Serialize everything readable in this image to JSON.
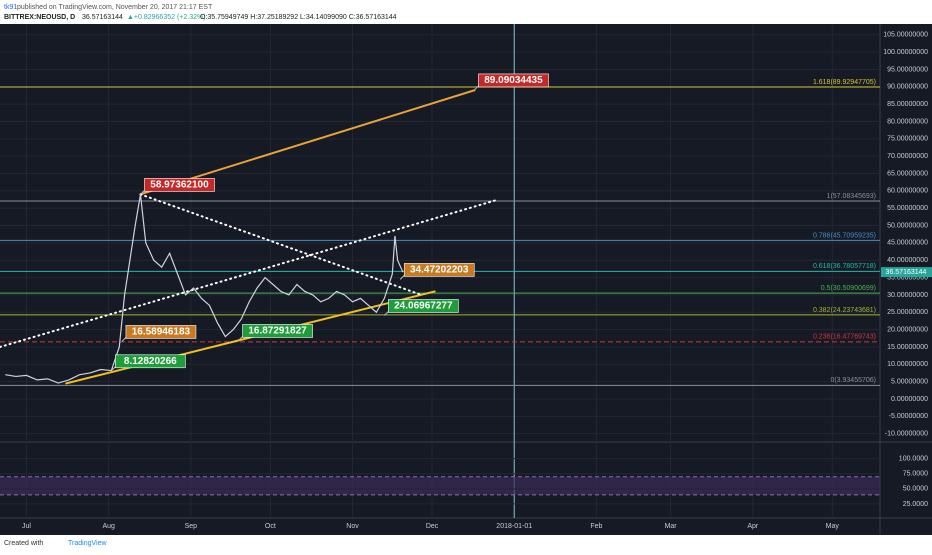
{
  "header": {
    "author": "tk91",
    "published": " published on TradingView.com, November 20, 2017 21:17 EST",
    "symbol": "BITTREX:NEOUSD, D",
    "last": "36.57163144",
    "change": "▲+0.82966352 (+2.32%)",
    "ohlc": "O:35.75949749 H:37.25189292 L:34.14099090 C:36.57163144"
  },
  "footer": {
    "created": "Created with",
    "brand": "TradingView"
  },
  "chart_data": {
    "type": "line",
    "color": "#cfd3dc",
    "x": [
      "2017-06-23",
      "2017-06-27",
      "2017-07-01",
      "2017-07-05",
      "2017-07-09",
      "2017-07-13",
      "2017-07-17",
      "2017-07-21",
      "2017-07-25",
      "2017-07-29",
      "2017-08-02",
      "2017-08-05",
      "2017-08-07",
      "2017-08-09",
      "2017-08-11",
      "2017-08-13",
      "2017-08-15",
      "2017-08-18",
      "2017-08-21",
      "2017-08-24",
      "2017-08-27",
      "2017-08-30",
      "2017-09-02",
      "2017-09-05",
      "2017-09-08",
      "2017-09-11",
      "2017-09-14",
      "2017-09-17",
      "2017-09-20",
      "2017-09-23",
      "2017-09-26",
      "2017-09-29",
      "2017-10-02",
      "2017-10-05",
      "2017-10-08",
      "2017-10-11",
      "2017-10-14",
      "2017-10-17",
      "2017-10-20",
      "2017-10-23",
      "2017-10-26",
      "2017-10-29",
      "2017-11-01",
      "2017-11-04",
      "2017-11-07",
      "2017-11-10",
      "2017-11-13",
      "2017-11-16",
      "2017-11-17",
      "2017-11-18",
      "2017-11-20"
    ],
    "values": [
      7,
      6.5,
      6.8,
      5.5,
      5.8,
      4.6,
      5.5,
      7,
      7.5,
      8.5,
      8.2,
      15,
      30,
      40,
      50,
      58.97,
      45,
      40,
      38,
      42,
      36,
      30,
      32,
      29,
      27,
      22,
      18,
      20,
      23,
      28,
      32,
      35,
      33,
      31,
      30,
      33,
      31,
      30,
      28,
      29,
      31,
      30,
      28,
      29,
      27,
      25,
      29,
      36,
      47,
      40,
      36.57
    ],
    "xlim": [
      "2017-06-21",
      "2018-05-19"
    ],
    "xticks": [
      {
        "value": "2017-07-01",
        "label": "Jul"
      },
      {
        "value": "2017-08-01",
        "label": "Aug"
      },
      {
        "value": "2017-09-01",
        "label": "Sep"
      },
      {
        "value": "2017-10-01",
        "label": "Oct"
      },
      {
        "value": "2017-11-01",
        "label": "Nov"
      },
      {
        "value": "2017-12-01",
        "label": "Dec"
      },
      "2018-01-01",
      {
        "value": "2018-02-01",
        "label": "Feb"
      },
      {
        "value": "2018-03-01",
        "label": "Mar"
      },
      {
        "value": "2018-04-01",
        "label": "Apr"
      },
      {
        "value": "2018-05-01",
        "label": "May"
      }
    ],
    "ylim": [
      -12.4,
      108.1
    ],
    "yticks": [
      {
        "value": 105,
        "label": "105.00000000"
      },
      {
        "value": 100,
        "label": "100.00000000"
      },
      {
        "value": 95,
        "label": "95.00000000"
      },
      {
        "value": 90,
        "label": "90.00000000"
      },
      {
        "value": 85,
        "label": "85.00000000"
      },
      {
        "value": 80,
        "label": "80.00000000"
      },
      {
        "value": 75,
        "label": "75.00000000"
      },
      {
        "value": 70,
        "label": "70.00000000"
      },
      {
        "value": 65,
        "label": "65.00000000"
      },
      {
        "value": 60,
        "label": "60.00000000"
      },
      {
        "value": 55,
        "label": "55.00000000"
      },
      {
        "value": 50,
        "label": "50.00000000"
      },
      {
        "value": 45,
        "label": "45.00000000"
      },
      {
        "value": 40,
        "label": "40.00000000"
      },
      {
        "value": 35,
        "label": "35.00000000"
      },
      {
        "value": 30,
        "label": "30.00000000"
      },
      {
        "value": 25,
        "label": "25.00000000"
      },
      {
        "value": 20,
        "label": "20.00000000"
      },
      {
        "value": 15,
        "label": "15.00000000"
      },
      {
        "value": 10,
        "label": "10.00000000"
      },
      {
        "value": 5,
        "label": "5.00000000"
      },
      {
        "value": 0,
        "label": "0.00000000"
      },
      {
        "value": -5,
        "label": "-5.00000000"
      },
      {
        "value": -10,
        "label": "-10.00000000"
      }
    ],
    "last_price": {
      "value": 36.57163144,
      "label": "36.57163144",
      "color": "#26a69a"
    },
    "fib_levels": [
      {
        "value": 89.92947705,
        "label": "1.618(89.92947705)",
        "color": "#d4c431"
      },
      {
        "value": 57.08345693,
        "label": "1(57.08345693)",
        "color": "#8a8f99"
      },
      {
        "value": 45.70959235,
        "label": "0.786(45.70959235)",
        "color": "#4a90c0"
      },
      {
        "value": 36.78057718,
        "label": "0.618(36.78057718)",
        "color": "#2bb3a8"
      },
      {
        "value": 30.50900699,
        "label": "0.5(30.50900699)",
        "color": "#4caf50"
      },
      {
        "value": 24.23743681,
        "label": "0.382(24.23743681)",
        "color": "#a8b330"
      },
      {
        "value": 16.47769743,
        "label": "0.236(16.47769743)",
        "color": "#d03838"
      },
      {
        "value": 3.93455706,
        "label": "0(3.93455706)",
        "color": "#8a8f99"
      }
    ],
    "annotations": [
      {
        "date": "2017-12-17",
        "value": 89.09034435,
        "label": "89.09034435",
        "color": "#c62828"
      },
      {
        "date": "2017-08-13",
        "value": 58.973621,
        "label": "58.97362100",
        "color": "#c62828"
      },
      {
        "date": "2017-11-19",
        "value": 34.47202203,
        "label": "34.47202203",
        "color": "#c77a22"
      },
      {
        "date": "2017-11-13",
        "value": 24.06967277,
        "label": "24.06967277",
        "color": "#1e9e3a"
      },
      {
        "date": "2017-08-06",
        "value": 16.58946183,
        "label": "16.58946183",
        "color": "#c77a22"
      },
      {
        "date": "2017-09-19",
        "value": 16.87291827,
        "label": "16.87291827",
        "color": "#1e9e3a"
      },
      {
        "date": "2017-08-02",
        "value": 8.12820266,
        "label": "8.12820266",
        "color": "#1e9e3a"
      }
    ],
    "trend_lines": [
      {
        "color": "#f0c020",
        "style": "solid",
        "points": [
          {
            "date": "2017-07-16",
            "price": 4.5
          },
          {
            "date": "2017-12-02",
            "price": 31
          }
        ]
      },
      {
        "color": "#e8a23a",
        "style": "solid",
        "points": [
          {
            "date": "2017-08-13",
            "price": 59
          },
          {
            "date": "2017-12-17",
            "price": 89
          }
        ]
      },
      {
        "color": "#ffffff",
        "style": "dotted",
        "points": [
          {
            "date": "2017-06-21",
            "price": 15
          },
          {
            "date": "2017-12-26",
            "price": 57.5
          }
        ]
      },
      {
        "color": "#ffffff",
        "style": "dotted",
        "points": [
          {
            "date": "2017-08-13",
            "price": 59
          },
          {
            "date": "2017-11-27",
            "price": 30
          }
        ]
      }
    ],
    "marker_date": "2018-01-01",
    "rsi": {
      "ylim": [
        5,
        121
      ],
      "yticks": [
        {
          "value": 100,
          "label": "100.0000"
        },
        {
          "value": 75,
          "label": "75.0000"
        },
        {
          "value": 50,
          "label": "50.0000"
        },
        {
          "value": 25,
          "label": "25.0000"
        }
      ],
      "band": [
        70,
        40
      ]
    }
  }
}
